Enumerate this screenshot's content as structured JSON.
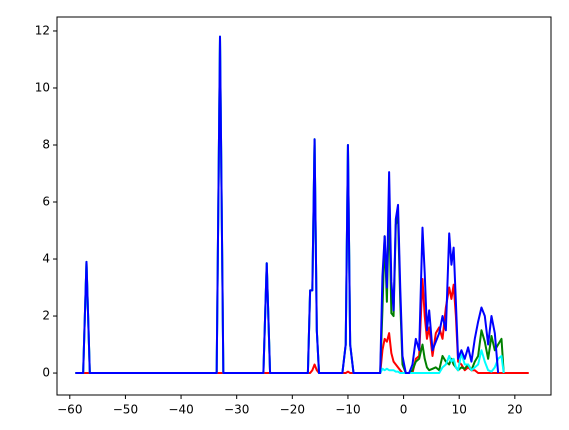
{
  "chart_data": {
    "type": "line",
    "x": [
      -59,
      -57.6,
      -57,
      -56.4,
      -34,
      -33.6,
      -33,
      -32.4,
      -32,
      -25.2,
      -24.6,
      -24,
      -17.2,
      -16.8,
      -16.4,
      -16,
      -15.6,
      -15.2,
      -11,
      -10.4,
      -10,
      -9.6,
      -9,
      -4.2,
      -3.8,
      -3.4,
      -3,
      -2.6,
      -2.2,
      -1.8,
      -1.4,
      -1,
      -0.6,
      -0.2,
      0.4,
      1,
      1.6,
      2.2,
      2.8,
      3.4,
      3.8,
      4.2,
      4.6,
      5.2,
      5.8,
      6.4,
      7,
      7.6,
      8.2,
      8.6,
      9,
      9.4,
      9.8,
      10.4,
      11,
      11.6,
      12.2,
      12.8,
      13.4,
      14,
      14.6,
      15.2,
      15.8,
      16.4,
      17,
      17.6,
      18,
      20,
      22.5
    ],
    "series": [
      {
        "color": "red",
        "values": [
          0,
          0,
          0,
          0,
          0,
          0,
          0,
          0,
          0,
          0,
          0,
          0,
          0,
          0,
          0.1,
          0.3,
          0.1,
          0,
          0,
          0,
          0.05,
          0,
          0,
          0,
          0.8,
          1.2,
          1.1,
          1.4,
          0.7,
          0.4,
          0.3,
          0.2,
          0.1,
          0,
          0,
          0,
          0,
          0.5,
          0.6,
          3.3,
          2,
          1.2,
          1.6,
          0.6,
          1.4,
          1.6,
          1.2,
          2.3,
          3,
          2.6,
          3.1,
          2,
          0.4,
          0.3,
          0.1,
          0.2,
          0.1,
          0.1,
          0,
          0,
          0,
          0,
          0,
          0,
          0,
          0,
          0,
          0,
          0
        ]
      },
      {
        "color": "green",
        "values": [
          0,
          0,
          3.9,
          0,
          0,
          0,
          11.8,
          0,
          0,
          0,
          3.85,
          0,
          0,
          2.9,
          2.9,
          8.2,
          1.5,
          0,
          0,
          1,
          8,
          1,
          0,
          0,
          2.2,
          4.8,
          2.5,
          6,
          2.1,
          2,
          5.2,
          5.5,
          2.5,
          0.3,
          0,
          0,
          0.1,
          0.4,
          0.5,
          1,
          0.5,
          0.2,
          0.1,
          0.15,
          0.2,
          0.1,
          0.6,
          0.4,
          0.3,
          0.5,
          0.3,
          0.2,
          0.1,
          0.2,
          0.15,
          0.3,
          0.1,
          0.4,
          0.6,
          1.5,
          1.1,
          0.5,
          1.3,
          0.8,
          1,
          1.2,
          0,
          null,
          null
        ]
      },
      {
        "color": "cyan",
        "values": [
          0,
          0,
          3.9,
          0,
          0,
          0,
          11.8,
          0,
          0,
          0,
          3.85,
          0,
          0,
          2.9,
          2.9,
          8.2,
          1.5,
          0,
          0,
          1,
          8,
          1,
          0,
          0,
          0.15,
          0.1,
          0.15,
          0.1,
          0.1,
          0.1,
          0.05,
          0.05,
          0,
          0,
          0,
          0,
          0,
          0,
          0,
          0,
          0,
          0,
          0,
          0,
          0,
          0,
          0.2,
          0.3,
          0.6,
          0.4,
          0.5,
          0.2,
          0.1,
          0.7,
          0.3,
          0.3,
          0.1,
          0.2,
          0.3,
          0.8,
          0.4,
          0.1,
          0.05,
          0.2,
          0.5,
          0.6,
          0,
          null,
          null
        ]
      },
      {
        "color": "blue",
        "values": [
          0,
          0,
          3.9,
          0,
          0,
          0,
          11.8,
          0,
          0,
          0,
          3.85,
          0,
          0,
          2.9,
          2.9,
          8.2,
          1.5,
          0,
          0,
          1,
          8,
          1,
          0,
          0,
          3.4,
          4.8,
          3,
          7.05,
          3.2,
          2.2,
          5.4,
          5.9,
          3,
          0.6,
          0,
          0,
          0.3,
          1.2,
          0.8,
          5.1,
          3.5,
          1.5,
          2.2,
          0.8,
          1.1,
          1.4,
          2,
          1.5,
          4.9,
          3.8,
          4.4,
          2.5,
          0.5,
          0.8,
          0.5,
          0.9,
          0.4,
          1.2,
          1.8,
          2.3,
          2,
          1,
          2,
          1.4,
          0,
          null,
          null,
          null,
          null
        ]
      }
    ],
    "xlim": [
      -62.3,
      26.5
    ],
    "ylim": [
      -0.77,
      12.49
    ],
    "xticks": [
      {
        "value": -60,
        "label": "−60"
      },
      {
        "value": -50,
        "label": "−50"
      },
      {
        "value": -40,
        "label": "−40"
      },
      {
        "value": -30,
        "label": "−30"
      },
      {
        "value": -20,
        "label": "−20"
      },
      {
        "value": -10,
        "label": "−10"
      },
      0,
      10,
      20
    ],
    "yticks": [
      0,
      2,
      4,
      6,
      8,
      10,
      12
    ],
    "line_width": 2
  }
}
